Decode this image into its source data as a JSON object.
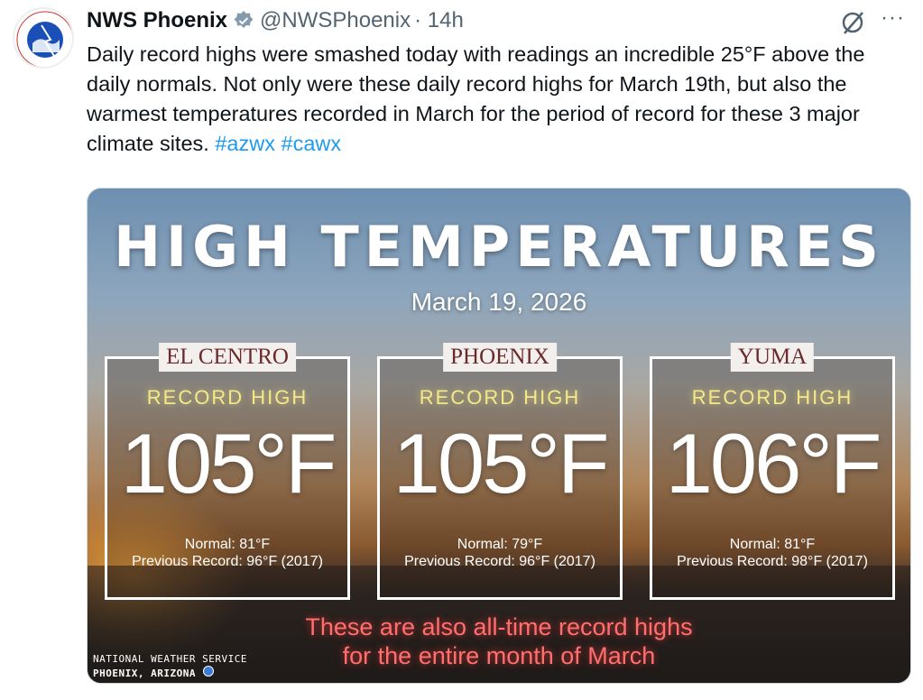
{
  "tweet": {
    "author": "NWS Phoenix",
    "handle": "@NWSPhoenix",
    "time": "· 14h",
    "text": "Daily record highs were smashed today with readings an incredible 25°F above the daily normals. Not only were these daily record highs for March 19th, but also the warmest temperatures recorded in March for the period of record for these 3 major climate sites. ",
    "hashtags": [
      "#azwx",
      "#cawx"
    ],
    "more_label": "···"
  },
  "media": {
    "title": "HIGH TEMPERATURES",
    "date": "March 19, 2026",
    "sites": [
      {
        "name": "EL CENTRO",
        "label": "RECORD HIGH",
        "temp": "105°F",
        "normal": "Normal: 81°F",
        "previous": "Previous Record: 96°F (2017)"
      },
      {
        "name": "PHOENIX",
        "label": "RECORD HIGH",
        "temp": "105°F",
        "normal": "Normal: 79°F",
        "previous": "Previous Record: 96°F (2017)"
      },
      {
        "name": "YUMA",
        "label": "RECORD HIGH",
        "temp": "106°F",
        "normal": "Normal: 81°F",
        "previous": "Previous Record: 98°F (2017)"
      }
    ],
    "footer_line1": "These are also all-time record highs",
    "footer_line2": "for the entire month of March",
    "credit_line1": "NATIONAL WEATHER SERVICE",
    "credit_line2": "PHOENIX, ARIZONA"
  },
  "colors": {
    "accent": "#1d9bf0",
    "record_high": "#f4e98a",
    "footer": "#ff6f6f"
  }
}
